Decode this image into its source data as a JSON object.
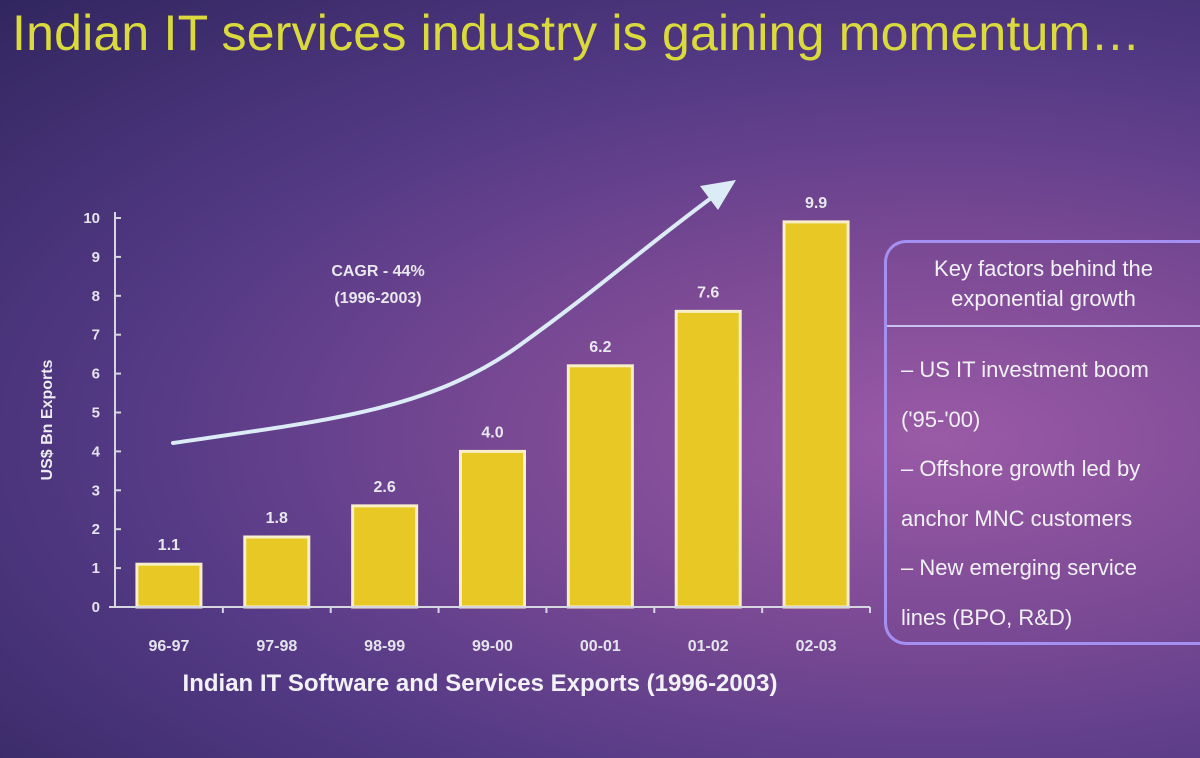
{
  "slide": {
    "title": "Indian IT services industry is gaining momentum…"
  },
  "chart_data": {
    "type": "bar",
    "categories": [
      "96-97",
      "97-98",
      "98-99",
      "99-00",
      "00-01",
      "01-02",
      "02-03"
    ],
    "values": [
      1.1,
      1.8,
      2.6,
      4.0,
      6.2,
      7.6,
      9.9
    ],
    "value_labels": [
      "1.1",
      "1.8",
      "2.6",
      "4.0",
      "6.2",
      "7.6",
      "9.9"
    ],
    "ylabel": "US$ Bn Exports",
    "xlabel": "Indian IT Software and Services Exports (1996-2003)",
    "ylim": [
      0,
      10
    ],
    "yticks": [
      0,
      1,
      2,
      3,
      4,
      5,
      6,
      7,
      8,
      9,
      10
    ],
    "grid": false,
    "bar_color": "#e8c824",
    "bar_border_color": "#f7efc8",
    "annotation": {
      "line1": "CAGR - 44%",
      "line2": "(1996-2003)"
    }
  },
  "factors": {
    "heading": "Key factors behind the exponential growth",
    "items": [
      "– US IT investment boom",
      "('95-'00)",
      "– Offshore growth led by",
      "anchor MNC customers",
      "– New emerging service",
      "lines (BPO, R&D)"
    ]
  }
}
